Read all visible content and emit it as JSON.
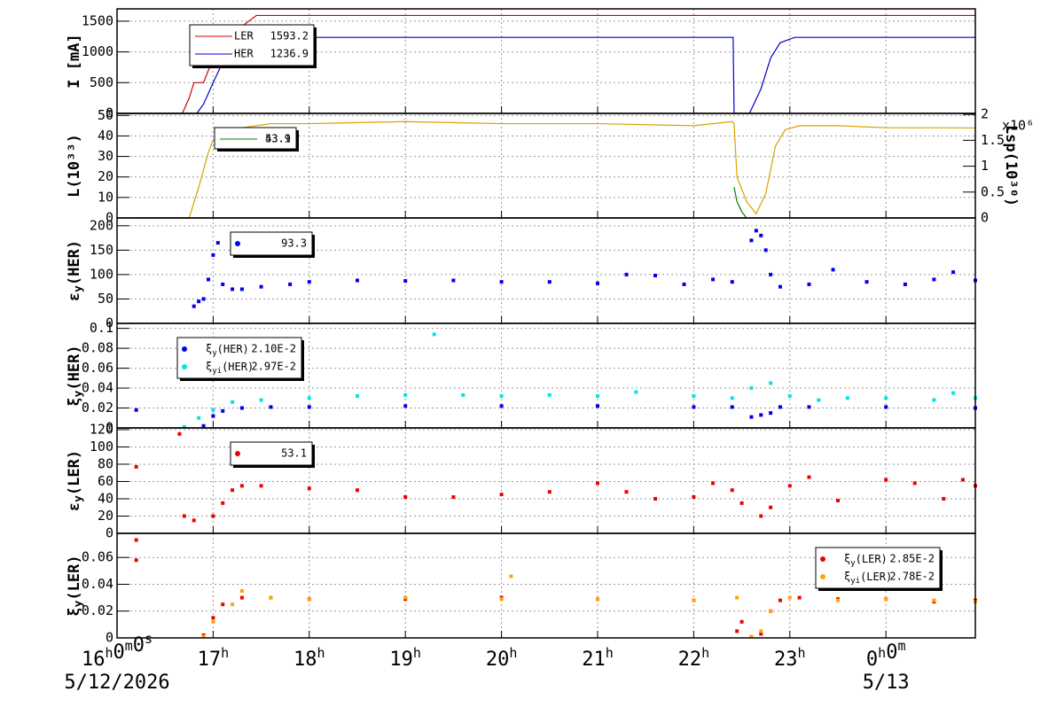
{
  "x_axis": {
    "xlim": [
      16,
      24.93
    ],
    "xticks": [
      {
        "value": 16,
        "label": "16h0m0s"
      },
      {
        "value": 17,
        "label": "17h"
      },
      {
        "value": 18,
        "label": "18h"
      },
      {
        "value": 19,
        "label": "19h"
      },
      {
        "value": 20,
        "label": "20h"
      },
      {
        "value": 21,
        "label": "21h"
      },
      {
        "value": 22,
        "label": "22h"
      },
      {
        "value": 23,
        "label": "23h"
      },
      {
        "value": 24,
        "label": "0h0m"
      }
    ],
    "dates": [
      {
        "value": 16,
        "label": "5/12/2026"
      },
      {
        "value": 24,
        "label": "5/13"
      }
    ]
  },
  "chart_data": [
    {
      "type": "line",
      "ylabel": "I [mA]",
      "ylim": [
        0,
        1700
      ],
      "yticks": [
        0,
        500,
        1000,
        1500
      ],
      "grid": true,
      "legend": "upper left",
      "series": [
        {
          "name": "LER",
          "legend_value": "1593.2",
          "color": "#cc0000",
          "x": [
            16,
            16.68,
            16.75,
            16.8,
            16.9,
            16.95,
            17.05,
            17.2,
            17.45,
            18,
            19,
            20,
            21,
            22,
            22.42,
            23,
            24,
            24.93
          ],
          "values": [
            0,
            0,
            250,
            500,
            500,
            700,
            1000,
            1300,
            1593,
            1593,
            1593,
            1593,
            1593,
            1593,
            1593,
            1593,
            1593,
            1593
          ]
        },
        {
          "name": "HER",
          "legend_value": "1236.9",
          "color": "#0000cc",
          "x": [
            16,
            16.83,
            16.9,
            17.0,
            17.15,
            17.26,
            18,
            19,
            20,
            21,
            22,
            22.41,
            22.42,
            22.58,
            22.7,
            22.8,
            22.9,
            23.05,
            24,
            24.93
          ],
          "values": [
            0,
            0,
            150,
            500,
            1000,
            1236,
            1236,
            1236,
            1236,
            1236,
            1236,
            1236,
            0,
            0,
            400,
            900,
            1150,
            1236,
            1236,
            1236
          ]
        }
      ]
    },
    {
      "type": "line",
      "ylabel": "L(10³³)",
      "ylim": [
        0,
        51
      ],
      "yticks": [
        0,
        10,
        20,
        30,
        40,
        50
      ],
      "grid": true,
      "legend": "upper left",
      "y2label": "Lsp(10³⁰)",
      "y2_multiplier": "x10⁶",
      "y2lim": [
        0,
        2.02
      ],
      "y2ticks": [
        0,
        0.5,
        1,
        1.5,
        2
      ],
      "series": [
        {
          "legend_value": "43.9",
          "color": "#d9a000",
          "x": [
            16.2,
            16.75,
            16.85,
            16.95,
            17.0,
            17.1,
            17.3,
            17.6,
            18,
            19,
            20,
            21,
            22,
            22.4,
            22.42,
            22.45,
            22.55,
            22.65,
            22.75,
            22.85,
            22.95,
            23.1,
            23.5,
            24,
            24.5,
            24.93
          ],
          "values": [
            0,
            0,
            15,
            32,
            38,
            40,
            44,
            46,
            46,
            47,
            46,
            46,
            45,
            47,
            46,
            20,
            8,
            2,
            12,
            35,
            43,
            45,
            45,
            44,
            44,
            43.9
          ]
        },
        {
          "legend_value": "53.1",
          "color": "#008000",
          "x": [
            22.42,
            22.45,
            22.5,
            22.55
          ],
          "values": [
            15,
            8,
            3,
            0
          ]
        }
      ]
    },
    {
      "type": "scatter",
      "ylabel": "εy(HER)",
      "ylim": [
        0,
        216
      ],
      "yticks": [
        0,
        50,
        100,
        150,
        200
      ],
      "grid": true,
      "legend": "upper left",
      "series": [
        {
          "legend_value": "93.3",
          "color": "#0000ee",
          "x": [
            16.8,
            16.85,
            16.9,
            16.95,
            17.0,
            17.05,
            17.1,
            17.2,
            17.3,
            17.5,
            17.8,
            18,
            18.5,
            19,
            19.5,
            20,
            20.5,
            21,
            21.3,
            21.6,
            21.9,
            22.2,
            22.4,
            22.6,
            22.65,
            22.7,
            22.75,
            22.8,
            22.9,
            23.2,
            23.45,
            23.8,
            24.2,
            24.5,
            24.7,
            24.93
          ],
          "values": [
            35,
            45,
            50,
            90,
            140,
            165,
            80,
            70,
            70,
            75,
            80,
            85,
            88,
            87,
            88,
            85,
            85,
            82,
            100,
            98,
            80,
            90,
            85,
            170,
            190,
            180,
            150,
            100,
            75,
            80,
            110,
            85,
            80,
            90,
            105,
            88
          ]
        }
      ]
    },
    {
      "type": "scatter",
      "ylabel": "ξy(HER)",
      "ylim": [
        0,
        0.105
      ],
      "yticks": [
        0,
        0.02,
        0.04,
        0.06,
        0.08,
        0.1
      ],
      "grid": true,
      "legend": "upper left",
      "series": [
        {
          "name": "ξy(HER)",
          "legend_value": "2.10E-2",
          "color": "#0000ee",
          "x": [
            16.2,
            16.9,
            17.0,
            17.1,
            17.3,
            17.6,
            18,
            19,
            20,
            21,
            22,
            22.4,
            22.6,
            22.7,
            22.8,
            22.9,
            23.2,
            24,
            24.93
          ],
          "values": [
            0.018,
            0.002,
            0.012,
            0.017,
            0.02,
            0.021,
            0.021,
            0.022,
            0.022,
            0.022,
            0.021,
            0.021,
            0.011,
            0.013,
            0.015,
            0.021,
            0.021,
            0.021,
            0.02
          ]
        },
        {
          "name": "ξyi(HER)",
          "legend_value": "2.97E-2",
          "color": "#00e5e5",
          "x": [
            16.7,
            16.85,
            17.0,
            17.2,
            17.5,
            18,
            18.5,
            19,
            19.3,
            19.6,
            20,
            20.5,
            21,
            21.4,
            22,
            22.4,
            22.6,
            22.8,
            23,
            23.3,
            23.6,
            24,
            24.5,
            24.7,
            24.93
          ],
          "values": [
            0.001,
            0.01,
            0.018,
            0.026,
            0.028,
            0.03,
            0.032,
            0.033,
            0.094,
            0.033,
            0.032,
            0.033,
            0.032,
            0.036,
            0.032,
            0.03,
            0.04,
            0.045,
            0.032,
            0.028,
            0.03,
            0.03,
            0.028,
            0.035,
            0.03
          ]
        }
      ]
    },
    {
      "type": "scatter",
      "ylabel": "εy(LER)",
      "ylim": [
        0,
        122
      ],
      "yticks": [
        0,
        20,
        40,
        60,
        80,
        100,
        120
      ],
      "grid": true,
      "legend": "upper left",
      "series": [
        {
          "legend_value": "53.1",
          "color": "#ee0000",
          "x": [
            16.2,
            16.65,
            16.7,
            16.8,
            17.0,
            17.1,
            17.2,
            17.3,
            17.5,
            18,
            18.5,
            19,
            19.5,
            20,
            20.5,
            21,
            21.3,
            21.6,
            22,
            22.2,
            22.4,
            22.5,
            22.7,
            22.8,
            23,
            23.2,
            23.5,
            24,
            24.3,
            24.6,
            24.8,
            24.93
          ],
          "values": [
            77,
            115,
            20,
            15,
            20,
            35,
            50,
            55,
            55,
            52,
            50,
            42,
            42,
            45,
            48,
            58,
            48,
            40,
            42,
            58,
            50,
            35,
            20,
            30,
            55,
            65,
            38,
            62,
            58,
            40,
            62,
            55
          ]
        }
      ]
    },
    {
      "type": "scatter",
      "ylabel": "ξy(LER)",
      "ylim": [
        0,
        0.078
      ],
      "yticks": [
        0,
        0.02,
        0.04,
        0.06
      ],
      "grid": true,
      "legend": "upper right",
      "series": [
        {
          "name": "ξy(LER)",
          "legend_value": "2.85E-2",
          "color": "#ee0000",
          "x": [
            16.2,
            16.2,
            16.9,
            17.0,
            17.1,
            17.3,
            17.6,
            18,
            19,
            20,
            21,
            22,
            22.45,
            22.5,
            22.6,
            22.7,
            22.8,
            22.9,
            23.1,
            23.5,
            24,
            24.5,
            24.93
          ],
          "values": [
            0.073,
            0.058,
            0.002,
            0.015,
            0.025,
            0.03,
            0.03,
            0.029,
            0.029,
            0.03,
            0.029,
            0.028,
            0.005,
            0.012,
            0.001,
            0.003,
            0.02,
            0.028,
            0.03,
            0.029,
            0.029,
            0.027,
            0.028
          ]
        },
        {
          "name": "ξyi(LER)",
          "legend_value": "2.78E-2",
          "color": "#ffa500",
          "x": [
            16.9,
            17.0,
            17.2,
            17.3,
            17.6,
            18,
            19,
            20,
            20.1,
            21,
            22,
            22.45,
            22.6,
            22.7,
            22.8,
            23,
            23.5,
            24,
            24.5,
            24.93
          ],
          "values": [
            0.001,
            0.012,
            0.025,
            0.035,
            0.03,
            0.029,
            0.03,
            0.029,
            0.046,
            0.029,
            0.028,
            0.03,
            0.001,
            0.005,
            0.02,
            0.03,
            0.028,
            0.029,
            0.028,
            0.027
          ]
        }
      ]
    }
  ]
}
